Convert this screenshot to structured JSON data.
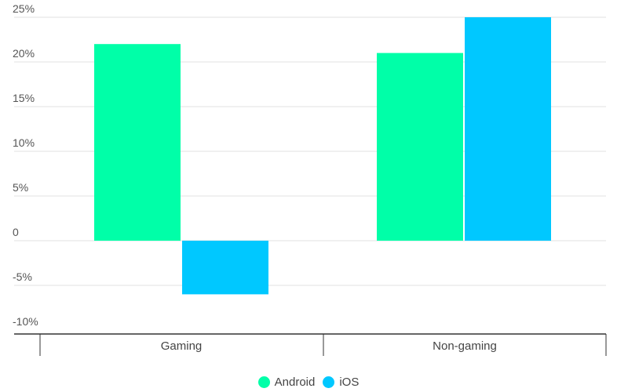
{
  "chart_data": {
    "type": "bar",
    "categories": [
      "Gaming",
      "Non-gaming"
    ],
    "series": [
      {
        "name": "Android",
        "color": "#00ffa8",
        "values": [
          22,
          21
        ]
      },
      {
        "name": "iOS",
        "color": "#00c8ff",
        "values": [
          -6,
          25
        ]
      }
    ],
    "ylim": [
      -10,
      25
    ],
    "yticks": [
      25,
      20,
      15,
      10,
      5,
      0,
      -5,
      -10
    ],
    "ytick_labels": [
      "25%",
      "20%",
      "15%",
      "10%",
      "5%",
      "0",
      "-5%",
      "-10%"
    ],
    "grid": true,
    "legend_position": "bottom-center",
    "title": "",
    "xlabel": "",
    "ylabel": ""
  }
}
